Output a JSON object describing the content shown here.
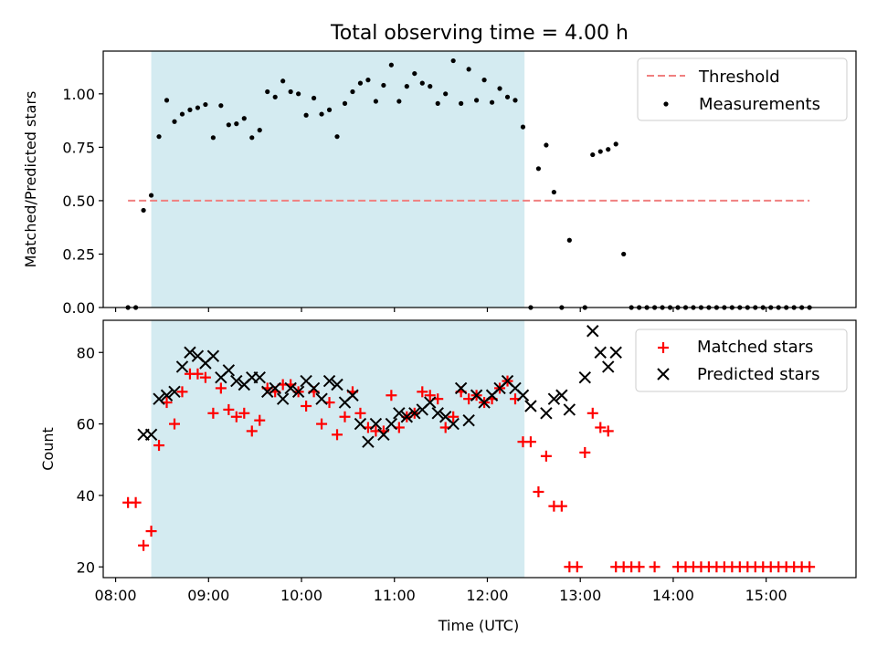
{
  "chart_data": [
    {
      "type": "scatter",
      "title": "Total observing time = 4.00 h",
      "xlabel": "",
      "ylabel": "Matched/Predicted stars",
      "ylim": [
        0,
        1.2
      ],
      "xlim": [
        "07:52",
        "15:58"
      ],
      "yticks": [
        "0.00",
        "0.25",
        "0.50",
        "0.75",
        "1.00"
      ],
      "shaded_interval": {
        "start": "08:23",
        "end": "12:24",
        "color": "#d4ebf1"
      },
      "legend": {
        "placement": "top-right",
        "entries": [
          "Threshold",
          "Measurements"
        ]
      },
      "series": [
        {
          "name": "Threshold",
          "kind": "line",
          "style": "dashed",
          "color": "#f08080",
          "x": [
            "08:08",
            "15:28"
          ],
          "y": [
            0.5,
            0.5
          ]
        },
        {
          "name": "Measurements",
          "kind": "scatter",
          "color": "#000000",
          "x": [
            "08:08",
            "08:13",
            "08:18",
            "08:23",
            "08:28",
            "08:33",
            "08:38",
            "08:43",
            "08:48",
            "08:53",
            "08:58",
            "09:03",
            "09:08",
            "09:13",
            "09:18",
            "09:23",
            "09:28",
            "09:33",
            "09:38",
            "09:43",
            "09:48",
            "09:53",
            "09:58",
            "10:03",
            "10:08",
            "10:13",
            "10:18",
            "10:23",
            "10:28",
            "10:33",
            "10:38",
            "10:43",
            "10:48",
            "10:53",
            "10:58",
            "11:03",
            "11:08",
            "11:13",
            "11:18",
            "11:23",
            "11:28",
            "11:33",
            "11:38",
            "11:43",
            "11:48",
            "11:53",
            "11:58",
            "12:03",
            "12:08",
            "12:13",
            "12:18",
            "12:23",
            "12:28",
            "12:33",
            "12:38",
            "12:43",
            "12:48",
            "12:53",
            "13:03",
            "13:08",
            "13:13",
            "13:18",
            "13:23",
            "13:28",
            "13:33",
            "13:38",
            "13:43",
            "13:48",
            "13:53",
            "13:58",
            "14:03",
            "14:08",
            "14:13",
            "14:18",
            "14:23",
            "14:28",
            "14:33",
            "14:38",
            "14:43",
            "14:48",
            "14:53",
            "14:58",
            "15:03",
            "15:08",
            "15:13",
            "15:18",
            "15:23",
            "15:28"
          ],
          "y": [
            0.0,
            0.0,
            0.455,
            0.525,
            0.8,
            0.97,
            0.87,
            0.905,
            0.925,
            0.935,
            0.95,
            0.795,
            0.945,
            0.855,
            0.86,
            0.885,
            0.795,
            0.83,
            1.01,
            0.985,
            1.06,
            1.01,
            1.0,
            0.9,
            0.98,
            0.905,
            0.925,
            0.8,
            0.955,
            1.01,
            1.05,
            1.065,
            0.965,
            1.04,
            1.135,
            0.965,
            1.035,
            1.095,
            1.05,
            1.035,
            0.955,
            1.0,
            1.155,
            0.955,
            1.115,
            0.97,
            1.065,
            0.96,
            1.025,
            0.985,
            0.97,
            0.845,
            0.0,
            0.65,
            0.76,
            0.54,
            0.0,
            0.315,
            0.0,
            0.715,
            0.73,
            0.74,
            0.765,
            0.25,
            0.0,
            0.0,
            0.0,
            0.0,
            0.0,
            0.0,
            0.0,
            0.0,
            0.0,
            0.0,
            0.0,
            0.0,
            0.0,
            0.0,
            0.0,
            0.0,
            0.0,
            0.0,
            0.0,
            0.0,
            0.0,
            0.0,
            0.0,
            0.0
          ]
        }
      ]
    },
    {
      "type": "scatter",
      "title": "",
      "xlabel": "Time (UTC)",
      "ylabel": "Count",
      "ylim": [
        17,
        89
      ],
      "xlim": [
        "07:52",
        "15:58"
      ],
      "xticks": [
        "08:00",
        "09:00",
        "10:00",
        "11:00",
        "12:00",
        "13:00",
        "14:00",
        "15:00"
      ],
      "yticks": [
        "20",
        "40",
        "60",
        "80"
      ],
      "shaded_interval": {
        "start": "08:23",
        "end": "12:24",
        "color": "#d4ebf1"
      },
      "legend": {
        "placement": "top-right",
        "entries": [
          "Matched stars",
          "Predicted stars"
        ]
      },
      "series": [
        {
          "name": "Matched stars",
          "marker": "+",
          "color": "#ff0000",
          "x": [
            "08:08",
            "08:13",
            "08:18",
            "08:23",
            "08:28",
            "08:33",
            "08:38",
            "08:43",
            "08:48",
            "08:53",
            "08:58",
            "09:03",
            "09:08",
            "09:13",
            "09:18",
            "09:23",
            "09:28",
            "09:33",
            "09:38",
            "09:43",
            "09:48",
            "09:53",
            "09:58",
            "10:03",
            "10:08",
            "10:13",
            "10:18",
            "10:23",
            "10:28",
            "10:33",
            "10:38",
            "10:43",
            "10:48",
            "10:53",
            "10:58",
            "11:03",
            "11:08",
            "11:13",
            "11:18",
            "11:23",
            "11:28",
            "11:33",
            "11:38",
            "11:43",
            "11:48",
            "11:53",
            "11:58",
            "12:03",
            "12:08",
            "12:13",
            "12:18",
            "12:23",
            "12:28",
            "12:33",
            "12:38",
            "12:43",
            "12:48",
            "12:53",
            "12:58",
            "13:03",
            "13:08",
            "13:13",
            "13:18",
            "13:23",
            "13:28",
            "13:33",
            "13:38",
            "13:48",
            "14:03",
            "14:08",
            "14:13",
            "14:18",
            "14:23",
            "14:28",
            "14:33",
            "14:38",
            "14:43",
            "14:48",
            "14:53",
            "14:58",
            "15:03",
            "15:08",
            "15:13",
            "15:18",
            "15:23",
            "15:28"
          ],
          "y": [
            38,
            38,
            26,
            30,
            54,
            66,
            60,
            69,
            74,
            74,
            73,
            63,
            70,
            64,
            62,
            63,
            58,
            61,
            70,
            69,
            71,
            71,
            69,
            65,
            69,
            60,
            66,
            57,
            62,
            69,
            63,
            59,
            58,
            58,
            68,
            59,
            62,
            63,
            69,
            68,
            67,
            59,
            62,
            69,
            67,
            68,
            66,
            67,
            70,
            72,
            67,
            55,
            55,
            41,
            51,
            37,
            37,
            20,
            20,
            52,
            63,
            59,
            58,
            20,
            20,
            20,
            20,
            20,
            20,
            20,
            20,
            20,
            20,
            20,
            20,
            20,
            20,
            20,
            20,
            20,
            20,
            20,
            20,
            20,
            20,
            20
          ]
        },
        {
          "name": "Predicted stars",
          "marker": "x",
          "color": "#000000",
          "x": [
            "08:18",
            "08:23",
            "08:28",
            "08:33",
            "08:38",
            "08:43",
            "08:48",
            "08:53",
            "08:58",
            "09:03",
            "09:08",
            "09:13",
            "09:18",
            "09:23",
            "09:28",
            "09:33",
            "09:38",
            "09:43",
            "09:48",
            "09:53",
            "09:58",
            "10:03",
            "10:08",
            "10:13",
            "10:18",
            "10:23",
            "10:28",
            "10:33",
            "10:38",
            "10:43",
            "10:48",
            "10:53",
            "10:58",
            "11:03",
            "11:08",
            "11:13",
            "11:18",
            "11:23",
            "11:28",
            "11:33",
            "11:38",
            "11:43",
            "11:48",
            "11:53",
            "11:58",
            "12:03",
            "12:08",
            "12:13",
            "12:18",
            "12:23",
            "12:28",
            "12:33",
            "12:38",
            "12:43",
            "12:48",
            "12:53",
            "13:03",
            "13:08",
            "13:13",
            "13:18",
            "13:23"
          ],
          "y": [
            57,
            57,
            67,
            68,
            69,
            76,
            80,
            79,
            77,
            79,
            73,
            75,
            72,
            71,
            73,
            73,
            69,
            70,
            67,
            70,
            69,
            72,
            70,
            67,
            72,
            71,
            66,
            68,
            60,
            55,
            60,
            57,
            60,
            63,
            62,
            63,
            64,
            66,
            63,
            62,
            60,
            70,
            61,
            68,
            66,
            68,
            70,
            72,
            70,
            68,
            65,
            null,
            63,
            67,
            68,
            64,
            73,
            86,
            80,
            76,
            80
          ]
        }
      ]
    }
  ]
}
